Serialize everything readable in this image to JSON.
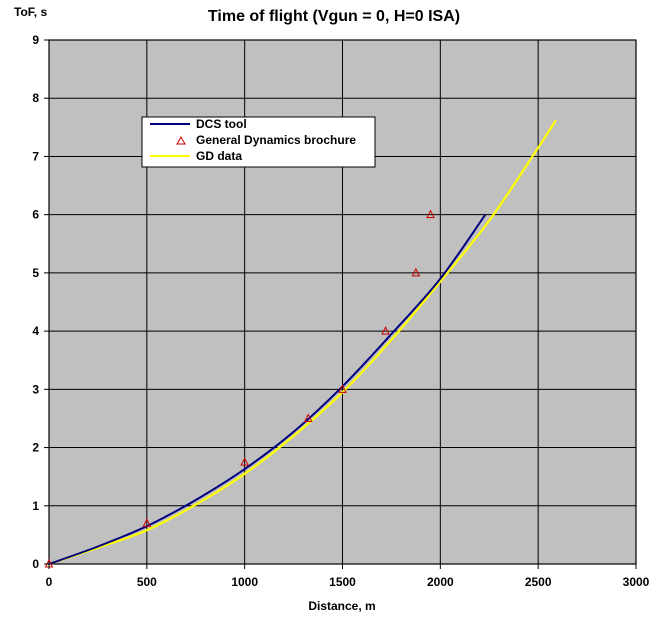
{
  "chart_data": {
    "type": "scatter",
    "title": "Time of flight (Vgun = 0, H=0 ISA)",
    "xlabel": "Distance, m",
    "ylabel": "ToF, s",
    "xlim": [
      0,
      3000
    ],
    "ylim": [
      0,
      9
    ],
    "xticks": [
      0,
      500,
      1000,
      1500,
      2000,
      2500,
      3000
    ],
    "yticks": [
      0,
      1,
      2,
      3,
      4,
      5,
      6,
      7,
      8,
      9
    ],
    "grid": true,
    "plot_background": "#c0c0c0",
    "legend": {
      "position": "upper-left"
    },
    "series": [
      {
        "name": "DCS tool",
        "kind": "line",
        "color": "#00007f",
        "x": [
          0,
          250,
          500,
          750,
          1000,
          1250,
          1500,
          1750,
          2000,
          2230
        ],
        "y": [
          0,
          0.3,
          0.65,
          1.1,
          1.63,
          2.27,
          3.05,
          3.95,
          4.9,
          6.0
        ]
      },
      {
        "name": "General Dynamics brochure",
        "kind": "marker",
        "marker": "triangle",
        "color": "#cc0000",
        "x": [
          0,
          500,
          1000,
          1325,
          1500,
          1720,
          1875,
          1950
        ],
        "y": [
          0,
          0.7,
          1.75,
          2.5,
          3.0,
          4.0,
          5.0,
          6.0
        ]
      },
      {
        "name": "GD data",
        "kind": "line",
        "color": "#ffff00",
        "x": [
          0,
          250,
          500,
          750,
          1000,
          1250,
          1500,
          1750,
          2000,
          2250,
          2500,
          2590
        ],
        "y": [
          0,
          0.28,
          0.58,
          1.02,
          1.55,
          2.2,
          2.95,
          3.85,
          4.85,
          5.9,
          7.15,
          7.62
        ]
      }
    ]
  }
}
